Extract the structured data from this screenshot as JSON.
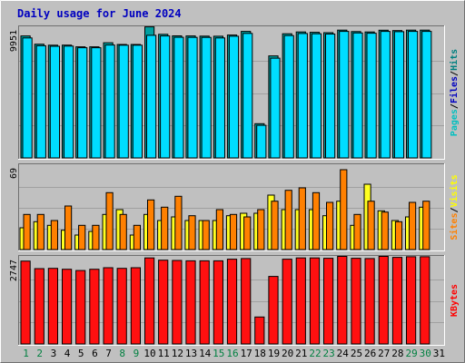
{
  "chart_data": {
    "type": "bar",
    "title": "Daily usage for June 2024",
    "categories": [
      "1",
      "2",
      "3",
      "4",
      "5",
      "6",
      "7",
      "8",
      "9",
      "10",
      "11",
      "12",
      "13",
      "14",
      "15",
      "16",
      "17",
      "18",
      "19",
      "20",
      "21",
      "22",
      "23",
      "24",
      "25",
      "26",
      "27",
      "28",
      "29",
      "30",
      "31"
    ],
    "weekend_days": [
      "1",
      "2",
      "8",
      "9",
      "15",
      "16",
      "22",
      "23",
      "29",
      "30"
    ],
    "panels": [
      {
        "id": "hits",
        "max_label": "9951",
        "ymax": 9951,
        "legend": [
          {
            "text": "Pages",
            "color": "#00c0c0"
          },
          {
            "text": "/",
            "color": "#000000"
          },
          {
            "text": "Files",
            "color": "#0000c0"
          },
          {
            "text": "/",
            "color": "#000000"
          },
          {
            "text": "Hits",
            "color": "#008080"
          }
        ],
        "series": [
          {
            "name": "Hits",
            "color": "#00a0a0",
            "values": [
              9350,
              8720,
              8640,
              8650,
              8520,
              8520,
              8830,
              8700,
              8700,
              10050,
              9480,
              9360,
              9350,
              9340,
              9330,
              9420,
              9700,
              2620,
              7820,
              9520,
              9660,
              9630,
              9600,
              9800,
              9690,
              9660,
              9790,
              9760,
              9800,
              9800
            ]
          },
          {
            "name": "Files",
            "color": "#00ddff",
            "values": [
              9200,
              8600,
              8560,
              8570,
              8450,
              8450,
              8660,
              8640,
              8640,
              9400,
              9350,
              9250,
              9240,
              9240,
              9200,
              9330,
              9550,
              2500,
              7650,
              9380,
              9540,
              9520,
              9500,
              9700,
              9580,
              9560,
              9700,
              9680,
              9700,
              9700
            ]
          }
        ]
      },
      {
        "id": "visits",
        "max_label": "69",
        "ymax": 69,
        "legend": [
          {
            "text": "Sites",
            "color": "#ff8000"
          },
          {
            "text": "/",
            "color": "#000000"
          },
          {
            "text": "Visits",
            "color": "#ffff00"
          }
        ],
        "series": [
          {
            "name": "Visits",
            "color": "#ffff20",
            "values": [
              18,
              23,
              20,
              16,
              12,
              15,
              29,
              33,
              12,
              29,
              24,
              27,
              24,
              24,
              24,
              28,
              30,
              30,
              45,
              33,
              33,
              33,
              28,
              40,
              20,
              54,
              32,
              24,
              27,
              35
            ]
          },
          {
            "name": "Sites",
            "color": "#ff8000",
            "values": [
              29,
              29,
              24,
              36,
              20,
              20,
              47,
              29,
              20,
              41,
              35,
              44,
              28,
              24,
              33,
              29,
              27,
              33,
              40,
              49,
              51,
              47,
              39,
              66,
              29,
              40,
              31,
              23,
              39,
              40
            ]
          }
        ]
      },
      {
        "id": "kbytes",
        "max_label": "2747",
        "ymax": 2747,
        "legend": [
          {
            "text": "KBytes",
            "color": "#ff0000"
          }
        ],
        "series": [
          {
            "name": "KBytes",
            "color": "#ff1010",
            "values": [
              2640,
              2400,
              2410,
              2380,
              2340,
              2380,
              2430,
              2410,
              2430,
              2740,
              2670,
              2660,
              2650,
              2650,
              2650,
              2700,
              2720,
              860,
              2150,
              2700,
              2740,
              2740,
              2730,
              2790,
              2730,
              2720,
              2790,
              2760,
              2780,
              2780
            ]
          }
        ]
      }
    ]
  }
}
